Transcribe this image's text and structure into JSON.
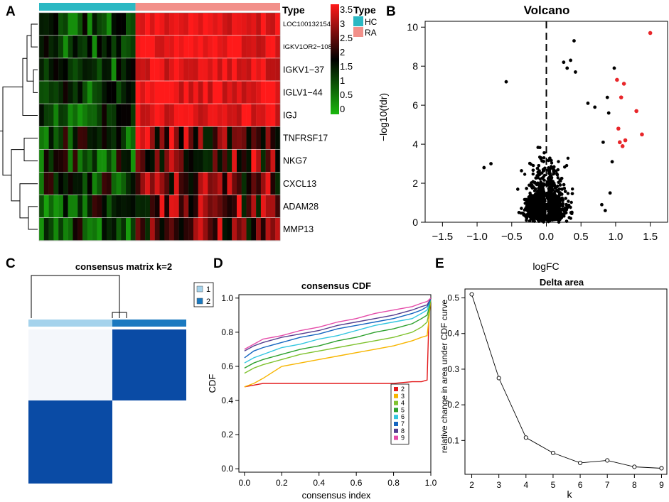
{
  "panels": {
    "A": "A",
    "B": "B",
    "C": "C",
    "D": "D",
    "E": "E"
  },
  "colors": {
    "hc": "#2BB8C3",
    "ra": "#F2908A",
    "heat_low": "#1BB80E",
    "heat_mid": "#000000",
    "heat_high": "#FF1A1A",
    "volcano_sig": "#E8262A",
    "consensus_dark": "#0A4BA5",
    "consensus_light": "#A5D3EC",
    "consensus_mid": "#1A79C0"
  },
  "heatmap": {
    "annotation_title": "Type",
    "legend_title": "Type",
    "legend_items": [
      "HC",
      "RA"
    ],
    "scale_ticks": [
      "3.5",
      "3",
      "2.5",
      "2",
      "1.5",
      "1",
      "0.5",
      "0"
    ],
    "n_hc": 20,
    "n_ra": 30,
    "genes": [
      "LOC100132154",
      "IGKV1OR2−108",
      "IGKV1−37",
      "IGLV1−44",
      "IGJ",
      "TNFRSF17",
      "NKG7",
      "CXCL13",
      "ADAM28",
      "MMP13"
    ]
  },
  "chart_data": [
    {
      "panel": "B",
      "type": "scatter",
      "title": "Volcano",
      "xlabel": "logFC",
      "ylabel": "−log10(fdr)",
      "xlim": [
        -1.75,
        1.75
      ],
      "ylim": [
        0,
        10.3
      ],
      "xticks": [
        "−1.5",
        "−1.0",
        "−0.5",
        "0.0",
        "0.5",
        "1.0",
        "1.5"
      ],
      "yticks": [
        "0",
        "2",
        "4",
        "6",
        "8",
        "10"
      ],
      "vline": 0,
      "significant": [
        [
          1.5,
          9.7
        ],
        [
          1.02,
          7.3
        ],
        [
          1.12,
          7.1
        ],
        [
          1.08,
          6.4
        ],
        [
          1.3,
          5.7
        ],
        [
          1.04,
          4.8
        ],
        [
          1.38,
          4.5
        ],
        [
          1.14,
          4.2
        ],
        [
          1.1,
          3.9
        ],
        [
          1.06,
          4.1
        ]
      ],
      "notable_points": [
        [
          0.4,
          9.3
        ],
        [
          0.25,
          8.2
        ],
        [
          0.3,
          7.9
        ],
        [
          0.42,
          7.7
        ],
        [
          0.98,
          7.9
        ],
        [
          -0.58,
          7.2
        ],
        [
          0.35,
          8.3
        ],
        [
          0.6,
          6.1
        ],
        [
          0.7,
          5.9
        ],
        [
          0.88,
          6.4
        ],
        [
          0.9,
          5.6
        ],
        [
          0.82,
          4.1
        ],
        [
          0.95,
          3.1
        ],
        [
          0.8,
          0.9
        ],
        [
          0.85,
          0.6
        ],
        [
          -0.9,
          2.8
        ],
        [
          -0.8,
          3.0
        ],
        [
          0.92,
          1.5
        ]
      ]
    },
    {
      "panel": "C",
      "type": "heatmap",
      "title": "consensus matrix k=2",
      "legend": [
        "1",
        "2"
      ]
    },
    {
      "panel": "D",
      "type": "line",
      "title": "consensus CDF",
      "xlabel": "consensus index",
      "ylabel": "CDF",
      "xlim": [
        -0.03,
        1.0
      ],
      "ylim": [
        -0.02,
        1.02
      ],
      "xticks": [
        "0.0",
        "0.2",
        "0.4",
        "0.6",
        "0.8",
        "1.0"
      ],
      "yticks": [
        "0.0",
        "0.2",
        "0.4",
        "0.6",
        "0.8",
        "1.0"
      ],
      "x": [
        0.0,
        0.05,
        0.1,
        0.2,
        0.3,
        0.4,
        0.5,
        0.6,
        0.7,
        0.8,
        0.9,
        0.95,
        0.98,
        0.99,
        1.0
      ],
      "series": [
        {
          "name": "2",
          "color": "#E31A1C",
          "values": [
            0.48,
            0.49,
            0.5,
            0.5,
            0.5,
            0.5,
            0.5,
            0.5,
            0.5,
            0.5,
            0.51,
            0.51,
            0.52,
            0.9,
            1.0
          ]
        },
        {
          "name": "3",
          "color": "#F7B500",
          "values": [
            0.48,
            0.5,
            0.53,
            0.6,
            0.62,
            0.64,
            0.66,
            0.68,
            0.7,
            0.72,
            0.75,
            0.77,
            0.78,
            0.88,
            1.0
          ]
        },
        {
          "name": "4",
          "color": "#7FC22E",
          "values": [
            0.56,
            0.59,
            0.61,
            0.64,
            0.67,
            0.69,
            0.71,
            0.73,
            0.75,
            0.77,
            0.8,
            0.83,
            0.86,
            0.92,
            1.0
          ]
        },
        {
          "name": "5",
          "color": "#2CA02C",
          "values": [
            0.59,
            0.62,
            0.64,
            0.67,
            0.7,
            0.72,
            0.75,
            0.77,
            0.8,
            0.82,
            0.85,
            0.88,
            0.9,
            0.94,
            1.0
          ]
        },
        {
          "name": "6",
          "color": "#33C6E0",
          "values": [
            0.62,
            0.65,
            0.67,
            0.71,
            0.73,
            0.76,
            0.78,
            0.81,
            0.84,
            0.86,
            0.88,
            0.91,
            0.93,
            0.96,
            1.0
          ]
        },
        {
          "name": "7",
          "color": "#1565C0",
          "values": [
            0.65,
            0.69,
            0.71,
            0.74,
            0.77,
            0.79,
            0.82,
            0.84,
            0.86,
            0.88,
            0.91,
            0.93,
            0.95,
            0.97,
            1.0
          ]
        },
        {
          "name": "8",
          "color": "#553E8F",
          "values": [
            0.69,
            0.72,
            0.74,
            0.77,
            0.79,
            0.81,
            0.84,
            0.86,
            0.88,
            0.9,
            0.93,
            0.95,
            0.96,
            0.98,
            1.0
          ]
        },
        {
          "name": "9",
          "color": "#E54BA9",
          "values": [
            0.7,
            0.73,
            0.76,
            0.78,
            0.81,
            0.83,
            0.86,
            0.88,
            0.91,
            0.93,
            0.95,
            0.97,
            0.98,
            0.99,
            1.0
          ]
        }
      ]
    },
    {
      "panel": "E",
      "type": "line",
      "title": "Delta area",
      "xlabel": "k",
      "ylabel": "relative change in area under CDF curve",
      "x": [
        2,
        3,
        4,
        5,
        6,
        7,
        8,
        9
      ],
      "values": [
        0.51,
        0.275,
        0.108,
        0.065,
        0.037,
        0.044,
        0.026,
        0.022
      ],
      "xlim": [
        1.75,
        9.25
      ],
      "ylim": [
        0.005,
        0.525
      ],
      "yticks": [
        "0.1",
        "0.2",
        "0.3",
        "0.4",
        "0.5"
      ]
    }
  ]
}
